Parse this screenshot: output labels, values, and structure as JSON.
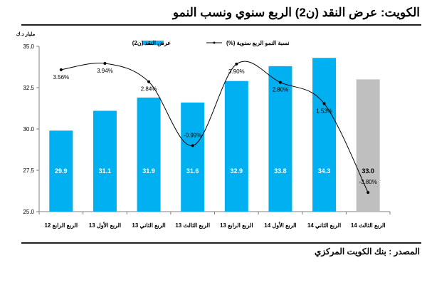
{
  "title": "الكويت: عرض النقد (ن2) الربع سنوي ونسب النمو",
  "source": "المصدر : بنك الكويت المركزي",
  "chart_data": {
    "type": "bar",
    "title": "الكويت: عرض النقد (ن2) الربع سنوي ونسب النمو",
    "ylabel": "مليار د.ك",
    "ylim": [
      25.0,
      35.0
    ],
    "yticks": [
      "25.0",
      "27.5",
      "30.0",
      "32.5",
      "35.0"
    ],
    "legend_position": "top-center",
    "categories": [
      "الربع الرابع 12",
      "الربع الأول 13",
      "الربع الثاني 13",
      "الربع الثالث 13",
      "الربع الرابع 13",
      "الربع الأول 14",
      "الربع الثاني 14",
      "الربع الثالث 14"
    ],
    "series": [
      {
        "name": "عرض النقد (ن2)",
        "type": "bar",
        "values": [
          29.9,
          31.1,
          31.9,
          31.6,
          32.9,
          33.8,
          34.3,
          33.0
        ],
        "labels": [
          "29.9",
          "31.1",
          "31.9",
          "31.6",
          "32.9",
          "33.8",
          "34.3",
          "33.0"
        ],
        "color": "#00b0f0",
        "last_color": "#bfbfbf"
      },
      {
        "name": "نسبة النمو الربع سنوية (%)",
        "type": "line",
        "values": [
          3.56,
          3.94,
          2.84,
          -0.99,
          3.9,
          2.8,
          1.53,
          -3.8
        ],
        "labels": [
          "3.56%",
          "3.94%",
          "2.84%",
          "-0.99%",
          "3.90%",
          "2.80%",
          "1.53%",
          "-3.80%"
        ],
        "color": "#000000"
      }
    ]
  }
}
